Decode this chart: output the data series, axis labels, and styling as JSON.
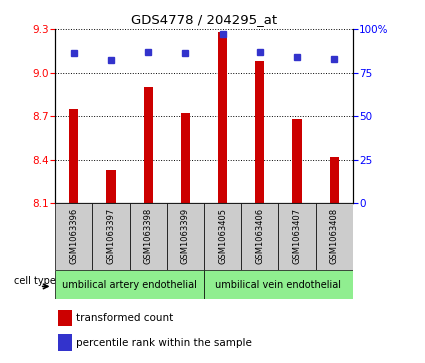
{
  "title": "GDS4778 / 204295_at",
  "samples": [
    "GSM1063396",
    "GSM1063397",
    "GSM1063398",
    "GSM1063399",
    "GSM1063405",
    "GSM1063406",
    "GSM1063407",
    "GSM1063408"
  ],
  "bar_values": [
    8.75,
    8.33,
    8.9,
    8.72,
    9.28,
    9.08,
    8.68,
    8.42
  ],
  "percentile_values": [
    86,
    82,
    87,
    86,
    97,
    87,
    84,
    83
  ],
  "ylim_left": [
    8.1,
    9.3
  ],
  "ylim_right": [
    0,
    100
  ],
  "yticks_left": [
    8.1,
    8.4,
    8.7,
    9.0,
    9.3
  ],
  "yticks_right": [
    0,
    25,
    50,
    75,
    100
  ],
  "bar_color": "#cc0000",
  "dot_color": "#3333cc",
  "group1_label": "umbilical artery endothelial",
  "group2_label": "umbilical vein endothelial",
  "group1_indices": [
    0,
    1,
    2,
    3
  ],
  "group2_indices": [
    4,
    5,
    6,
    7
  ],
  "cell_type_label": "cell type",
  "legend_bar_label": "transformed count",
  "legend_dot_label": "percentile rank within the sample",
  "background_color": "#ffffff",
  "cell_type_bg": "#90ee90",
  "sample_bg": "#cccccc",
  "bar_width": 0.25
}
